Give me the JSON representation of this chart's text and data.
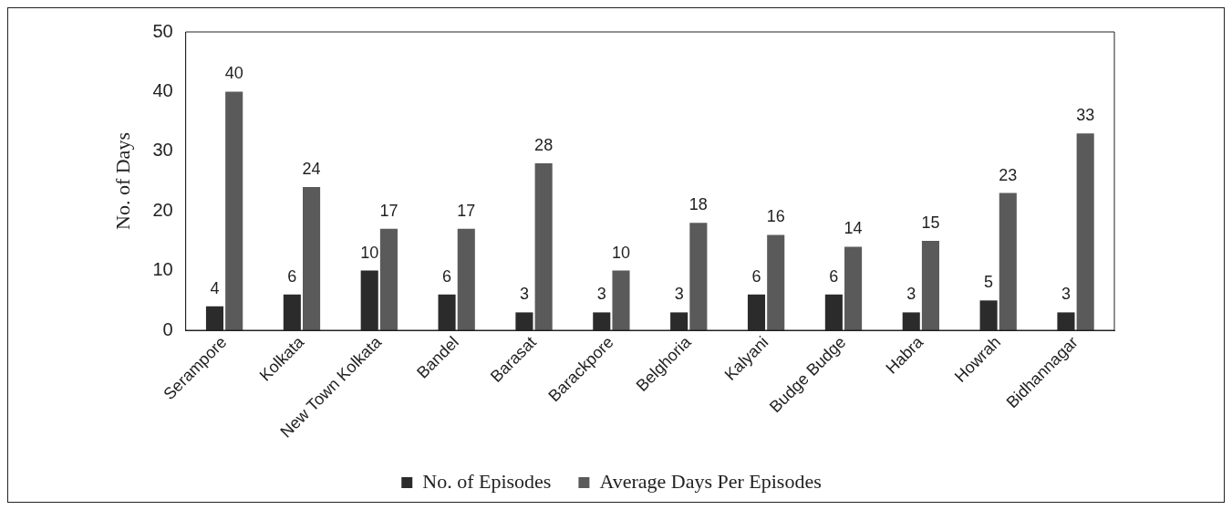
{
  "chart_data": {
    "type": "bar",
    "ylabel": "No. of Days",
    "categories": [
      "Serampore",
      "Kolkata",
      "New Town Kolkata",
      "Bandel",
      "Barasat",
      "Barackpore",
      "Belghoria",
      "Kalyani",
      "Budge Budge",
      "Habra",
      "Howrah",
      "Bidhannagar"
    ],
    "series": [
      {
        "name": "No. of Episodes",
        "color": "#2b2b2b",
        "values": [
          4,
          6,
          10,
          6,
          3,
          3,
          3,
          6,
          6,
          3,
          5,
          3
        ]
      },
      {
        "name": "Average Days Per Episodes",
        "color": "#5a5a5a",
        "values": [
          40,
          24,
          17,
          17,
          28,
          10,
          18,
          16,
          14,
          15,
          23,
          33
        ]
      }
    ],
    "ylim": [
      0,
      50
    ],
    "yticks": [
      0,
      10,
      20,
      30,
      40,
      50
    ],
    "grid": false,
    "legend": "bottom",
    "data_labels": true
  }
}
